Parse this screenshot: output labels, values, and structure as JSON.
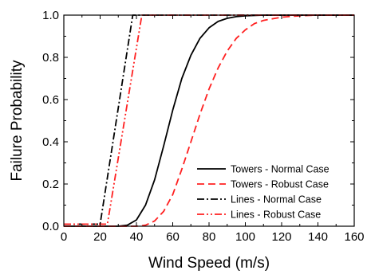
{
  "chart_data": {
    "type": "line",
    "title": "",
    "xlabel": "Wind Speed (m/s)",
    "ylabel": "Failure Probability",
    "xlim": [
      0,
      160
    ],
    "ylim": [
      0,
      1.0
    ],
    "x_ticks": [
      "0",
      "20",
      "40",
      "60",
      "80",
      "100",
      "120",
      "140",
      "160"
    ],
    "y_ticks": [
      "0.0",
      "0.2",
      "0.4",
      "0.6",
      "0.8",
      "1.0"
    ],
    "grid": false,
    "legend_position": "lower-right",
    "series": [
      {
        "name": "Towers - Normal Case",
        "color": "#000000",
        "style": "solid",
        "x": [
          0,
          30,
          35,
          40,
          45,
          50,
          55,
          60,
          65,
          70,
          75,
          80,
          85,
          90,
          95,
          100,
          110,
          120,
          130,
          140,
          160
        ],
        "y": [
          0.0,
          0.0,
          0.005,
          0.03,
          0.1,
          0.22,
          0.38,
          0.55,
          0.7,
          0.81,
          0.89,
          0.94,
          0.97,
          0.985,
          0.993,
          0.997,
          1.0,
          1.0,
          1.0,
          1.0,
          1.0
        ]
      },
      {
        "name": "Towers - Robust Case",
        "color": "#ff2020",
        "style": "dashed",
        "x": [
          0,
          40,
          45,
          50,
          55,
          60,
          65,
          70,
          75,
          80,
          85,
          90,
          95,
          100,
          105,
          110,
          120,
          130,
          140,
          160
        ],
        "y": [
          0.0,
          0.0,
          0.005,
          0.025,
          0.07,
          0.15,
          0.27,
          0.4,
          0.53,
          0.65,
          0.75,
          0.83,
          0.89,
          0.93,
          0.96,
          0.975,
          0.99,
          0.997,
          1.0,
          1.0
        ]
      },
      {
        "name": "Lines - Normal Case",
        "color": "#000000",
        "style": "dashdot",
        "x": [
          0,
          20,
          38,
          160
        ],
        "y": [
          0.01,
          0.01,
          1.0,
          1.0
        ]
      },
      {
        "name": "Lines - Robust Case",
        "color": "#ff2020",
        "style": "dashdotdot",
        "x": [
          0,
          24,
          43,
          160
        ],
        "y": [
          0.01,
          0.01,
          1.0,
          1.0
        ]
      }
    ]
  }
}
